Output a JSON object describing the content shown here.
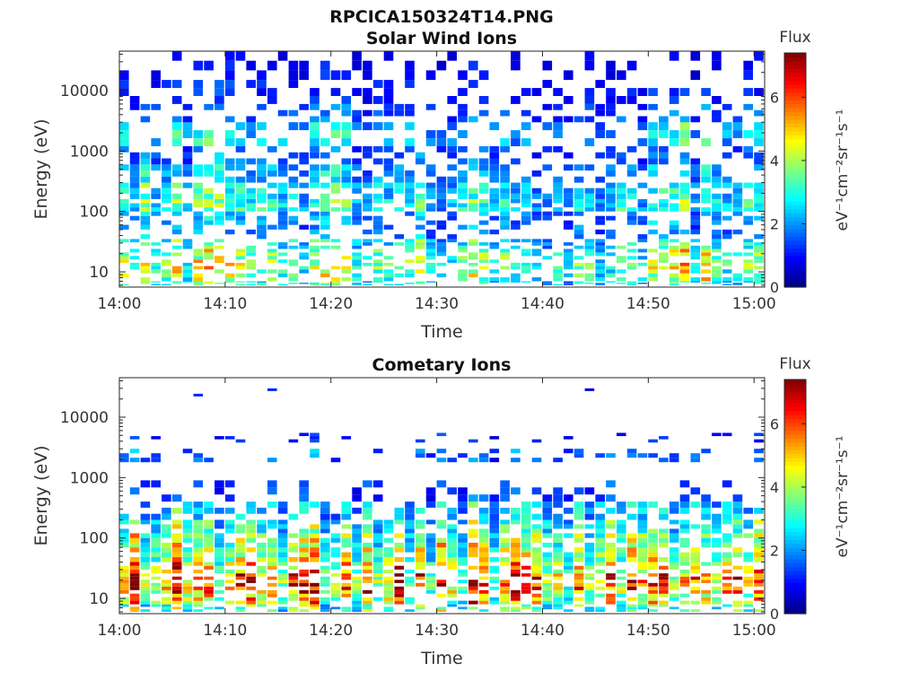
{
  "figure": {
    "title": "RPCICA150324T14.PNG"
  },
  "colorscale": [
    "#00007f",
    "#0000ff",
    "#007fff",
    "#00ffff",
    "#7fff7f",
    "#ffff00",
    "#ff7f00",
    "#ff0000",
    "#7f0000"
  ],
  "chart_data": [
    {
      "type": "heatmap",
      "title": "Solar Wind Ions",
      "xlabel": "Time",
      "ylabel": "Energy (eV)",
      "xticks": [
        "14:00",
        "14:10",
        "14:20",
        "14:30",
        "14:40",
        "14:50",
        "15:00"
      ],
      "xlim_minutes": [
        0,
        61
      ],
      "yscale": "log",
      "ylim": [
        5.6,
        45000
      ],
      "yticks": [
        10,
        100,
        1000,
        10000
      ],
      "colorbar": {
        "label": "Flux",
        "units": "eV⁻¹cm⁻²sr⁻¹s⁻¹",
        "range": [
          0,
          7.4
        ],
        "ticks": [
          0,
          2,
          4,
          6
        ]
      },
      "bands": [
        {
          "e": [
            6,
            7
          ],
          "v": 2.8,
          "p": 0.45
        },
        {
          "e": [
            7,
            11
          ],
          "v": 3.4,
          "p": 0.55
        },
        {
          "e": [
            11,
            16
          ],
          "v": 3.8,
          "p": 0.55
        },
        {
          "e": [
            16,
            24
          ],
          "v": 3.5,
          "p": 0.5
        },
        {
          "e": [
            24,
            35
          ],
          "v": 2.8,
          "p": 0.45
        },
        {
          "e": [
            35,
            60
          ],
          "v": 1.8,
          "p": 0.3
        },
        {
          "e": [
            60,
            100
          ],
          "v": 2.0,
          "p": 0.45
        },
        {
          "e": [
            100,
            160
          ],
          "v": 2.9,
          "p": 0.85
        },
        {
          "e": [
            160,
            300
          ],
          "v": 2.6,
          "p": 0.75
        },
        {
          "e": [
            300,
            600
          ],
          "v": 2.1,
          "p": 0.6
        },
        {
          "e": [
            600,
            1200
          ],
          "v": 1.6,
          "p": 0.45
        },
        {
          "e": [
            1200,
            3000
          ],
          "v": 2.4,
          "p": 0.5
        },
        {
          "e": [
            3000,
            6000
          ],
          "v": 1.5,
          "p": 0.4
        },
        {
          "e": [
            6000,
            15000
          ],
          "v": 1.1,
          "p": 0.3
        },
        {
          "e": [
            15000,
            45000
          ],
          "v": 0.9,
          "p": 0.25
        }
      ]
    },
    {
      "type": "heatmap",
      "title": "Cometary Ions",
      "xlabel": "Time",
      "ylabel": "Energy (eV)",
      "xticks": [
        "14:00",
        "14:10",
        "14:20",
        "14:30",
        "14:40",
        "14:50",
        "15:00"
      ],
      "xlim_minutes": [
        0,
        61
      ],
      "yscale": "log",
      "ylim": [
        5.6,
        45000
      ],
      "yticks": [
        10,
        100,
        1000,
        10000
      ],
      "colorbar": {
        "label": "Flux",
        "units": "eV⁻¹cm⁻²sr⁻¹s⁻¹",
        "range": [
          0,
          7.4
        ],
        "ticks": [
          0,
          2,
          4,
          6
        ]
      },
      "bands": [
        {
          "e": [
            6,
            8
          ],
          "v": 3.2,
          "p": 0.55
        },
        {
          "e": [
            8,
            12
          ],
          "v": 4.5,
          "p": 0.65
        },
        {
          "e": [
            12,
            18
          ],
          "v": 5.2,
          "p": 0.65
        },
        {
          "e": [
            18,
            26
          ],
          "v": 5.6,
          "p": 0.6
        },
        {
          "e": [
            26,
            40
          ],
          "v": 4.6,
          "p": 0.65
        },
        {
          "e": [
            40,
            70
          ],
          "v": 4.0,
          "p": 0.8
        },
        {
          "e": [
            70,
            120
          ],
          "v": 3.6,
          "p": 0.8
        },
        {
          "e": [
            120,
            200
          ],
          "v": 3.1,
          "p": 0.75
        },
        {
          "e": [
            200,
            400
          ],
          "v": 2.4,
          "p": 0.55
        },
        {
          "e": [
            400,
            900
          ],
          "v": 1.4,
          "p": 0.25
        },
        {
          "e": [
            1800,
            3000
          ],
          "v": 1.6,
          "p": 0.3
        },
        {
          "e": [
            3800,
            5500
          ],
          "v": 1.0,
          "p": 0.12
        },
        {
          "e": [
            22000,
            30000
          ],
          "v": 1.0,
          "p": 0.02
        }
      ]
    }
  ]
}
